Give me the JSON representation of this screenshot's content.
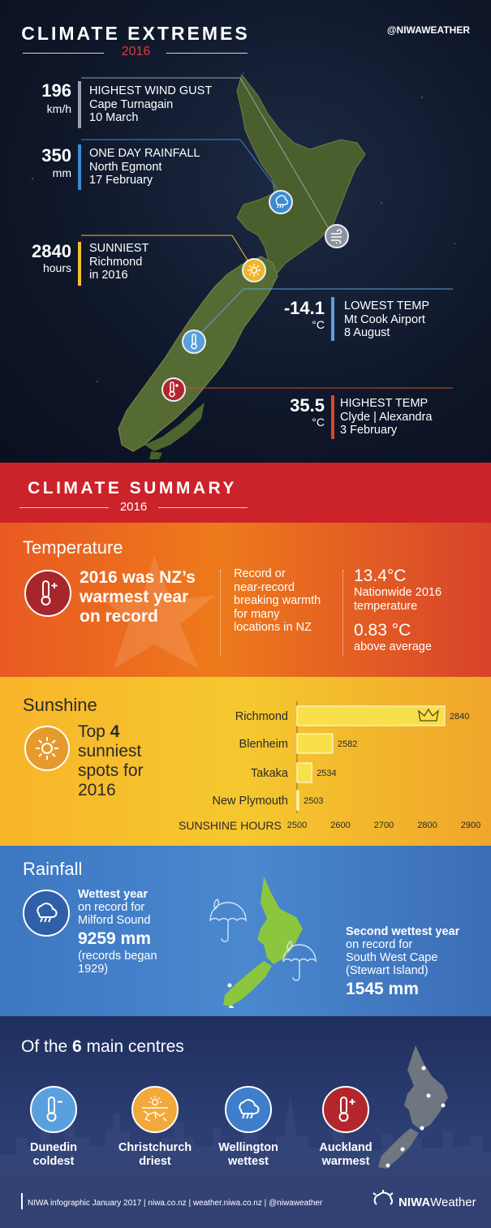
{
  "header": {
    "title": "CLIMATE EXTREMES",
    "year": "2016",
    "handle": "@NIWAWEATHER"
  },
  "extremes": [
    {
      "value": "196",
      "unit": "km/h",
      "label": "HIGHEST WIND GUST",
      "place": "Cape Turnagain",
      "date": "10 March",
      "color": "#9aa1ab",
      "icon": "wind-icon"
    },
    {
      "value": "350",
      "unit": "mm",
      "label": "ONE DAY RAINFALL",
      "place": "North Egmont",
      "date": "17 February",
      "color": "#3e8bd0",
      "icon": "rain-icon"
    },
    {
      "value": "2840",
      "unit": "hours",
      "label": "SUNNIEST",
      "place": "Richmond",
      "date": "in 2016",
      "color": "#f2c12e",
      "icon": "sun-icon"
    },
    {
      "value": "-14.1",
      "unit": "°C",
      "label": "LOWEST TEMP",
      "place": "Mt Cook Airport",
      "date": "8 August",
      "color": "#5aa0de",
      "icon": "thermometer-cold-icon"
    },
    {
      "value": "35.5",
      "unit": "°C",
      "label": "HIGHEST TEMP",
      "place": "Clyde | Alexandra",
      "date": "3 February",
      "color": "#d9492c",
      "icon": "thermometer-hot-icon"
    }
  ],
  "summary": {
    "title": "CLIMATE SUMMARY",
    "year": "2016"
  },
  "temperature": {
    "title": "Temperature",
    "headline": [
      "2016 was NZ’s",
      "warmest year",
      "on record"
    ],
    "note": [
      "Record or",
      "near-record",
      "breaking warmth",
      "for many",
      "locations in NZ"
    ],
    "stat1_value": "13.4°C",
    "stat1_label": [
      "Nationwide 2016",
      "temperature"
    ],
    "stat2_value": "0.83 °C",
    "stat2_label": "above average"
  },
  "sunshine": {
    "title": "Sunshine",
    "headline_pre": "Top ",
    "headline_num": "4",
    "headline_rest": [
      "sunniest",
      "spots for",
      "2016"
    ]
  },
  "chart_data": {
    "type": "bar",
    "orientation": "horizontal",
    "categories": [
      "Richmond",
      "Blenheim",
      "Takaka",
      "New Plymouth"
    ],
    "values": [
      2840,
      2582,
      2534,
      2503
    ],
    "xlabel": "SUNSHINE HOURS",
    "xlim": [
      2500,
      2900
    ],
    "xticks": [
      "2500",
      "2600",
      "2700",
      "2800",
      "2900"
    ],
    "bar_color": "#f7e04a",
    "top_marker": "crown-icon"
  },
  "rainfall": {
    "title": "Rainfall",
    "left_title": "Wettest year",
    "left_lines": [
      "on record for",
      "Milford Sound"
    ],
    "left_value": "9259 mm",
    "left_note": [
      "(records began",
      "1929)"
    ],
    "right_title": "Second wettest year",
    "right_lines": [
      "on record for",
      "South West Cape",
      "(Stewart Island)"
    ],
    "right_value": "1545 mm"
  },
  "centres": {
    "title_pre": "Of the ",
    "title_num": "6",
    "title_post": " main centres",
    "items": [
      {
        "city": "Dunedin",
        "desc": "coldest",
        "icon": "thermometer-cold-icon",
        "color": "#5aa0de"
      },
      {
        "city": "Christchurch",
        "desc": "driest",
        "icon": "dry-sun-icon",
        "color": "#f2a93b"
      },
      {
        "city": "Wellington",
        "desc": "wettest",
        "icon": "rain-icon",
        "color": "#3e7fcb"
      },
      {
        "city": "Auckland",
        "desc": "warmest",
        "icon": "thermometer-hot-icon",
        "color": "#b3262e"
      }
    ]
  },
  "footer": {
    "text": "NIWA infographic January 2017  |  niwa.co.nz  |  weather.niwa.co.nz  |  @niwaweather",
    "brand_bold": "NIWA",
    "brand_light": "Weather"
  }
}
